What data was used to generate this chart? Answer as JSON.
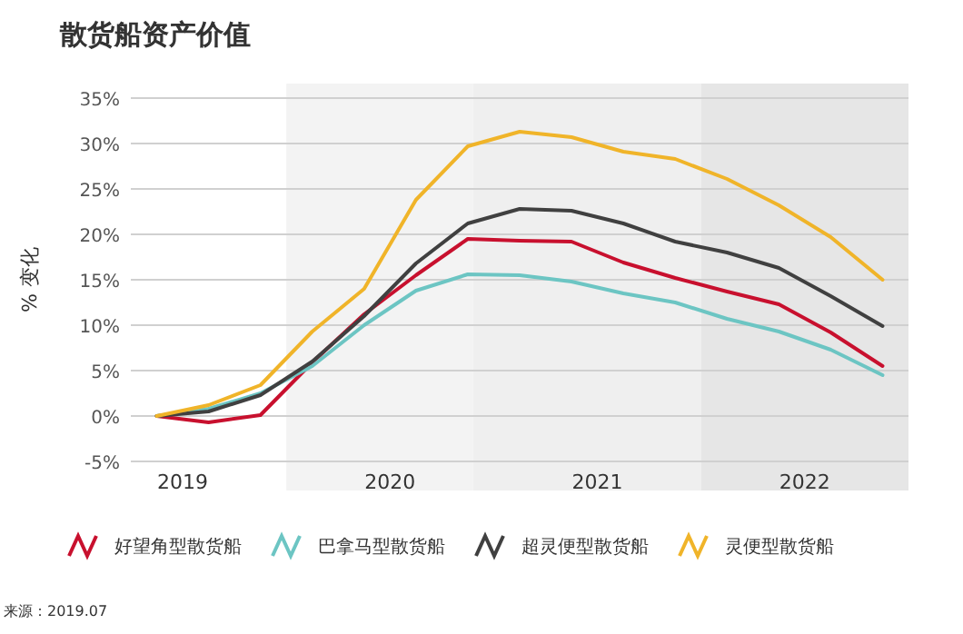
{
  "chart_data": {
    "type": "line",
    "title": "散货船资产价值",
    "ylabel": "% 变化",
    "x": [
      2018.875,
      2019.125,
      2019.375,
      2019.625,
      2019.875,
      2020.125,
      2020.375,
      2020.625,
      2020.875,
      2021.125,
      2021.375,
      2021.625,
      2021.875,
      2022.125,
      2022.375
    ],
    "xlim": [
      2018.75,
      2022.5
    ],
    "ylim": [
      -5,
      35
    ],
    "yticks": [
      {
        "value": -5,
        "label": "-5%"
      },
      {
        "value": 0,
        "label": "0%"
      },
      {
        "value": 5,
        "label": "5%"
      },
      {
        "value": 10,
        "label": "10%"
      },
      {
        "value": 15,
        "label": "15%"
      },
      {
        "value": 20,
        "label": "20%"
      },
      {
        "value": 25,
        "label": "25%"
      },
      {
        "value": 30,
        "label": "30%"
      },
      {
        "value": 35,
        "label": "35%"
      }
    ],
    "xticks": [
      2019,
      2020,
      2021,
      2022
    ],
    "grid": "y",
    "legend": "bottom",
    "marker": "none",
    "line_style": "solid",
    "bands": [
      {
        "axis": "x",
        "from": 2019.5,
        "to": 2020.4,
        "color": "#f3f3f3"
      },
      {
        "axis": "x",
        "from": 2020.4,
        "to": 2021.5,
        "color": "#efefef"
      },
      {
        "axis": "x",
        "from": 2021.5,
        "to": 2022.5,
        "color": "#e6e6e6"
      }
    ],
    "series": [
      {
        "name": "好望角型散货船",
        "color": "#c8102e",
        "values": [
          0,
          -0.7,
          0.1,
          5.9,
          11.2,
          15.5,
          19.5,
          19.3,
          19.2,
          16.9,
          15.2,
          13.7,
          12.3,
          9.2,
          5.5
        ]
      },
      {
        "name": "巴拿马型散货船",
        "color": "#6cc5c3",
        "values": [
          0,
          0.8,
          2.5,
          5.5,
          10,
          13.8,
          15.6,
          15.5,
          14.8,
          13.5,
          12.5,
          10.7,
          9.3,
          7.3,
          4.5
        ]
      },
      {
        "name": "超灵便型散货船",
        "color": "#404040",
        "values": [
          0,
          0.5,
          2.3,
          6,
          11,
          16.8,
          21.2,
          22.8,
          22.6,
          21.2,
          19.2,
          18,
          16.3,
          13.2,
          9.9
        ]
      },
      {
        "name": "灵便型散货船",
        "color": "#f0b429",
        "values": [
          0,
          1.2,
          3.4,
          9.3,
          14,
          23.8,
          29.7,
          31.3,
          30.7,
          29.1,
          28.3,
          26.1,
          23.2,
          19.7,
          15
        ]
      }
    ],
    "annotations": [
      "来源：2019.07"
    ]
  }
}
